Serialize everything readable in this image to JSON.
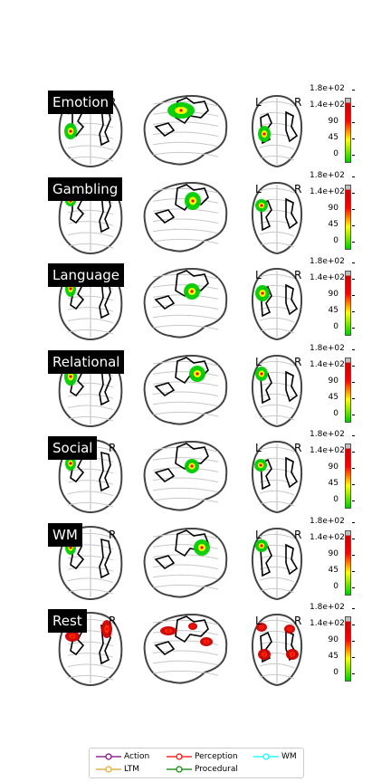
{
  "panels": [
    {
      "title": "Emotion",
      "label_l": "L",
      "label_r": "R"
    },
    {
      "title": "Gambling",
      "label_l": "L",
      "label_r": "R"
    },
    {
      "title": "Language",
      "label_l": "L",
      "label_r": "R"
    },
    {
      "title": "Relational",
      "label_l": "L",
      "label_r": "R"
    },
    {
      "title": "Social",
      "label_l": "L",
      "label_r": "R"
    },
    {
      "title": "WM",
      "label_l": "L",
      "label_r": "R"
    },
    {
      "title": "Rest",
      "label_l": "L",
      "label_r": "R"
    }
  ],
  "colorbar": {
    "ticks": [
      "1.8e+02",
      "1.4e+02",
      "90",
      "45",
      "0"
    ],
    "colors": [
      "#00cc00",
      "#ffff00",
      "#ff0000",
      "#cc0000",
      "#c0c0c0"
    ]
  },
  "legend": {
    "items": [
      {
        "label": "Action",
        "color": "#800080"
      },
      {
        "label": "LTM",
        "color": "#daa520"
      },
      {
        "label": "Perception",
        "color": "#ff0000"
      },
      {
        "label": "Procedural",
        "color": "#008000"
      },
      {
        "label": "WM",
        "color": "#00ffff"
      }
    ]
  },
  "icons": {
    "brain_axial": "axial-brain-glass-icon",
    "brain_sagittal": "sagittal-brain-glass-icon",
    "brain_coronal": "coronal-brain-glass-icon"
  }
}
